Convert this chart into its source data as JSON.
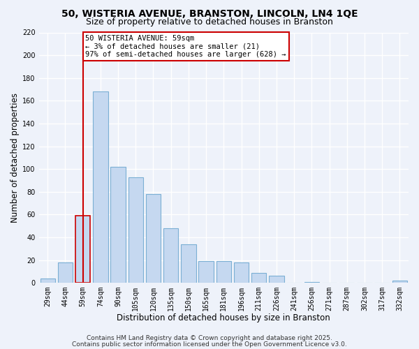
{
  "title_line1": "50, WISTERIA AVENUE, BRANSTON, LINCOLN, LN4 1QE",
  "title_line2": "Size of property relative to detached houses in Branston",
  "xlabel": "Distribution of detached houses by size in Branston",
  "ylabel": "Number of detached properties",
  "bar_labels": [
    "29sqm",
    "44sqm",
    "59sqm",
    "74sqm",
    "90sqm",
    "105sqm",
    "120sqm",
    "135sqm",
    "150sqm",
    "165sqm",
    "181sqm",
    "196sqm",
    "211sqm",
    "226sqm",
    "241sqm",
    "256sqm",
    "271sqm",
    "287sqm",
    "302sqm",
    "317sqm",
    "332sqm"
  ],
  "bar_values": [
    4,
    18,
    59,
    168,
    102,
    93,
    78,
    48,
    34,
    19,
    19,
    18,
    9,
    6,
    0,
    1,
    0,
    0,
    0,
    0,
    2
  ],
  "bar_color": "#c5d8f0",
  "bar_edge_color": "#7bafd4",
  "highlight_bar_index": 2,
  "highlight_bar_edge_color": "#cc0000",
  "vline_x_index": 2,
  "vline_color": "#cc0000",
  "annotation_line1": "50 WISTERIA AVENUE: 59sqm",
  "annotation_line2": "← 3% of detached houses are smaller (21)",
  "annotation_line3": "97% of semi-detached houses are larger (628) →",
  "annotation_box_color": "#ffffff",
  "annotation_box_edge_color": "#cc0000",
  "ylim": [
    0,
    220
  ],
  "yticks": [
    0,
    20,
    40,
    60,
    80,
    100,
    120,
    140,
    160,
    180,
    200,
    220
  ],
  "footer_line1": "Contains HM Land Registry data © Crown copyright and database right 2025.",
  "footer_line2": "Contains public sector information licensed under the Open Government Licence v3.0.",
  "bg_color": "#eef2fa",
  "grid_color": "#ffffff",
  "title_fontsize": 10,
  "subtitle_fontsize": 9,
  "axis_label_fontsize": 8.5,
  "tick_fontsize": 7,
  "annot_fontsize": 7.5,
  "footer_fontsize": 6.5
}
